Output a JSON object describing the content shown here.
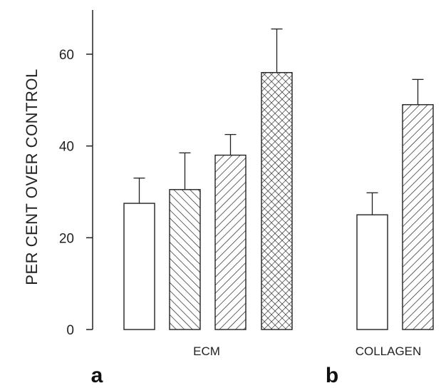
{
  "chart_data": {
    "type": "bar",
    "ylabel": "PER CENT OVER CONTROL",
    "ylim": [
      0,
      70
    ],
    "yticks": [
      "0",
      "20",
      "40",
      "60"
    ],
    "ytick_values": [
      0,
      20,
      40,
      60
    ],
    "panels": [
      {
        "panel_label": "a",
        "group_label": "ECM",
        "bars": [
          {
            "value": 27.5,
            "error": 5.5,
            "fill": "open"
          },
          {
            "value": 30.5,
            "error": 8.0,
            "fill": "back-diagonal-hatch"
          },
          {
            "value": 38.0,
            "error": 4.5,
            "fill": "diagonal-hatch"
          },
          {
            "value": 56.0,
            "error": 9.5,
            "fill": "cross-hatch"
          }
        ]
      },
      {
        "panel_label": "b",
        "group_label": "COLLAGEN",
        "bars": [
          {
            "value": 25.0,
            "error": 4.8,
            "fill": "open"
          },
          {
            "value": 49.0,
            "error": 5.5,
            "fill": "diagonal-hatch"
          }
        ]
      }
    ]
  }
}
